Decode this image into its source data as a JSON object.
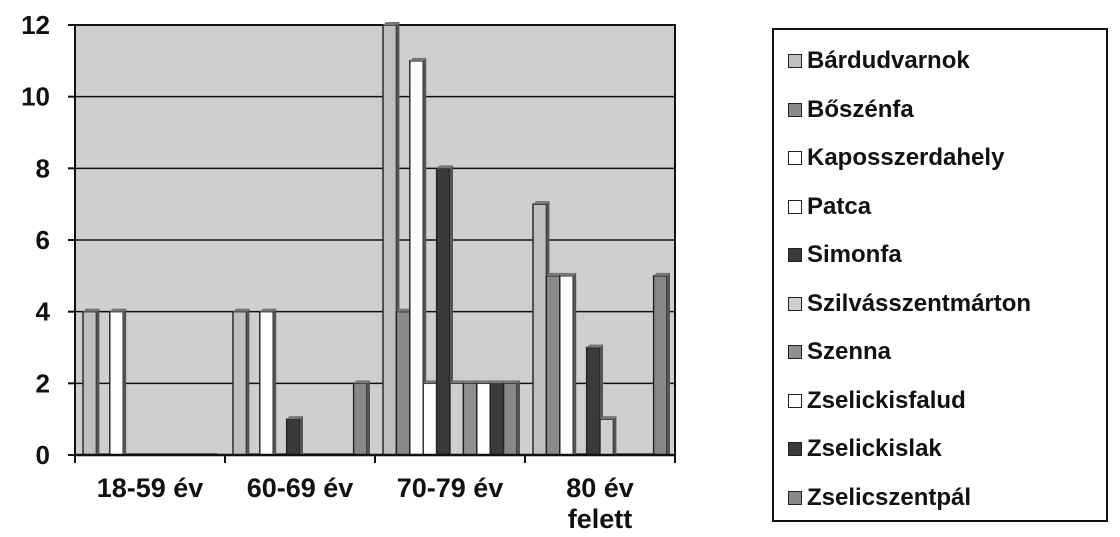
{
  "chart_data": {
    "type": "bar",
    "categories": [
      "18-59 év",
      "60-69 év",
      "70-79 év",
      "80 év felett"
    ],
    "ylim": [
      0,
      12
    ],
    "yticks": [
      0,
      2,
      4,
      6,
      8,
      10,
      12
    ],
    "grid": true,
    "legend_position": "right",
    "plot_background": "#cfcfcf",
    "series": [
      {
        "name": "Bárdudvarnok",
        "color": "#bfbfbf",
        "values": [
          4,
          4,
          12,
          7
        ]
      },
      {
        "name": "Bőszénfa",
        "color": "#8a8a8a",
        "values": [
          0,
          0,
          4,
          5
        ]
      },
      {
        "name": "Kaposszerdahely",
        "color": "#ffffff",
        "values": [
          4,
          4,
          11,
          5
        ]
      },
      {
        "name": "Patca",
        "color": "#ffffff",
        "values": [
          0,
          0,
          2,
          0
        ]
      },
      {
        "name": "Simonfa",
        "color": "#3a3a3a",
        "values": [
          0,
          1,
          8,
          3
        ]
      },
      {
        "name": "Szilvásszentmárton",
        "color": "#cfcfcf",
        "values": [
          0,
          0,
          2,
          1
        ]
      },
      {
        "name": "Szenna",
        "color": "#8f8f8f",
        "values": [
          0,
          0,
          2,
          0
        ]
      },
      {
        "name": "Zselickisfalud",
        "color": "#ffffff",
        "values": [
          0,
          0,
          2,
          0
        ]
      },
      {
        "name": "Zselickislak",
        "color": "#3a3a3a",
        "values": [
          0,
          0,
          2,
          0
        ]
      },
      {
        "name": "Zselicszentpál",
        "color": "#888888",
        "values": [
          0,
          2,
          2,
          5
        ]
      }
    ]
  }
}
